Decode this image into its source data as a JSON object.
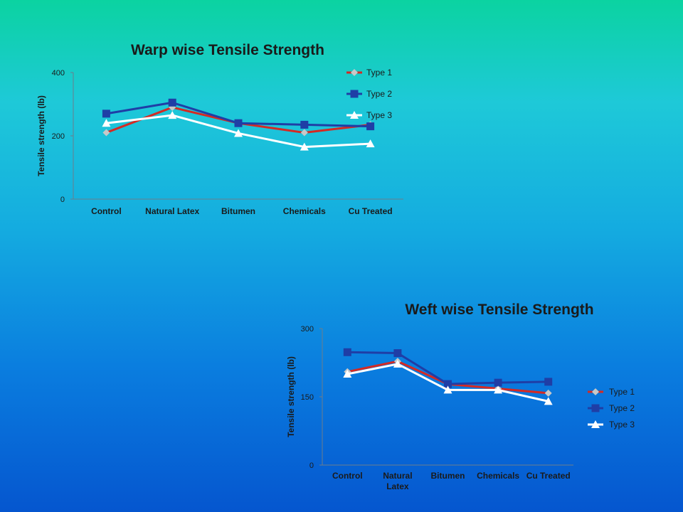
{
  "chart_data": [
    {
      "type": "line",
      "title": "Warp wise Tensile Strength",
      "xlabel": "",
      "ylabel": "Tensile strength (lb)",
      "ylim": [
        0,
        400
      ],
      "yticks": [
        0,
        200,
        400
      ],
      "categories": [
        "Control",
        "Natural Latex",
        "Bitumen",
        "Chemicals",
        "Cu Treated"
      ],
      "legend_position": "top-right",
      "grid": false,
      "series": [
        {
          "name": "Type 1",
          "marker": "diamond",
          "color": "#d42a24",
          "marker_color": "#c8c8c8",
          "values": [
            210,
            290,
            240,
            210,
            235
          ]
        },
        {
          "name": "Type 2",
          "marker": "square",
          "color": "#1f3ea6",
          "marker_color": "#1f3ea6",
          "values": [
            270,
            305,
            240,
            235,
            230
          ]
        },
        {
          "name": "Type 3",
          "marker": "triangle",
          "color": "#ffffff",
          "marker_color": "#ffffff",
          "values": [
            240,
            265,
            208,
            165,
            175
          ]
        }
      ]
    },
    {
      "type": "line",
      "title": "Weft wise Tensile Strength",
      "xlabel": "",
      "ylabel": "Tensile strength (lb)",
      "ylim": [
        0,
        300
      ],
      "yticks": [
        0,
        150,
        300
      ],
      "categories": [
        "Control",
        "Natural Latex",
        "Bitumen",
        "Chemicals",
        "Cu Treated"
      ],
      "legend_position": "right",
      "grid": false,
      "series": [
        {
          "name": "Type 1",
          "marker": "diamond",
          "color": "#d42a24",
          "marker_color": "#c8c8c8",
          "values": [
            205,
            228,
            178,
            168,
            158
          ]
        },
        {
          "name": "Type 2",
          "marker": "square",
          "color": "#1f3ea6",
          "marker_color": "#1f3ea6",
          "values": [
            248,
            246,
            178,
            181,
            183
          ]
        },
        {
          "name": "Type 3",
          "marker": "triangle",
          "color": "#ffffff",
          "marker_color": "#ffffff",
          "values": [
            200,
            222,
            165,
            165,
            140
          ]
        }
      ]
    }
  ]
}
